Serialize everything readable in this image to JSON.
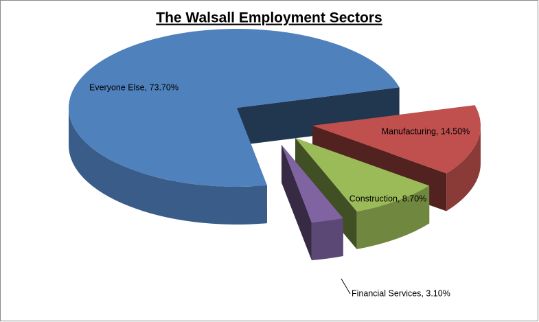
{
  "chart_data": {
    "type": "pie3d",
    "title": "The Walsall Employment Sectors",
    "values": [
      73.7,
      14.5,
      8.7,
      3.1
    ],
    "value_labels": [
      "Everyone Else, 73.70%",
      "Manufacturing, 14.50%",
      "Construction, 8.70%",
      "Financial Services, 3.10%"
    ],
    "colors": [
      "#4f81bd",
      "#c0504d",
      "#9bbb59",
      "#8064a2"
    ]
  }
}
